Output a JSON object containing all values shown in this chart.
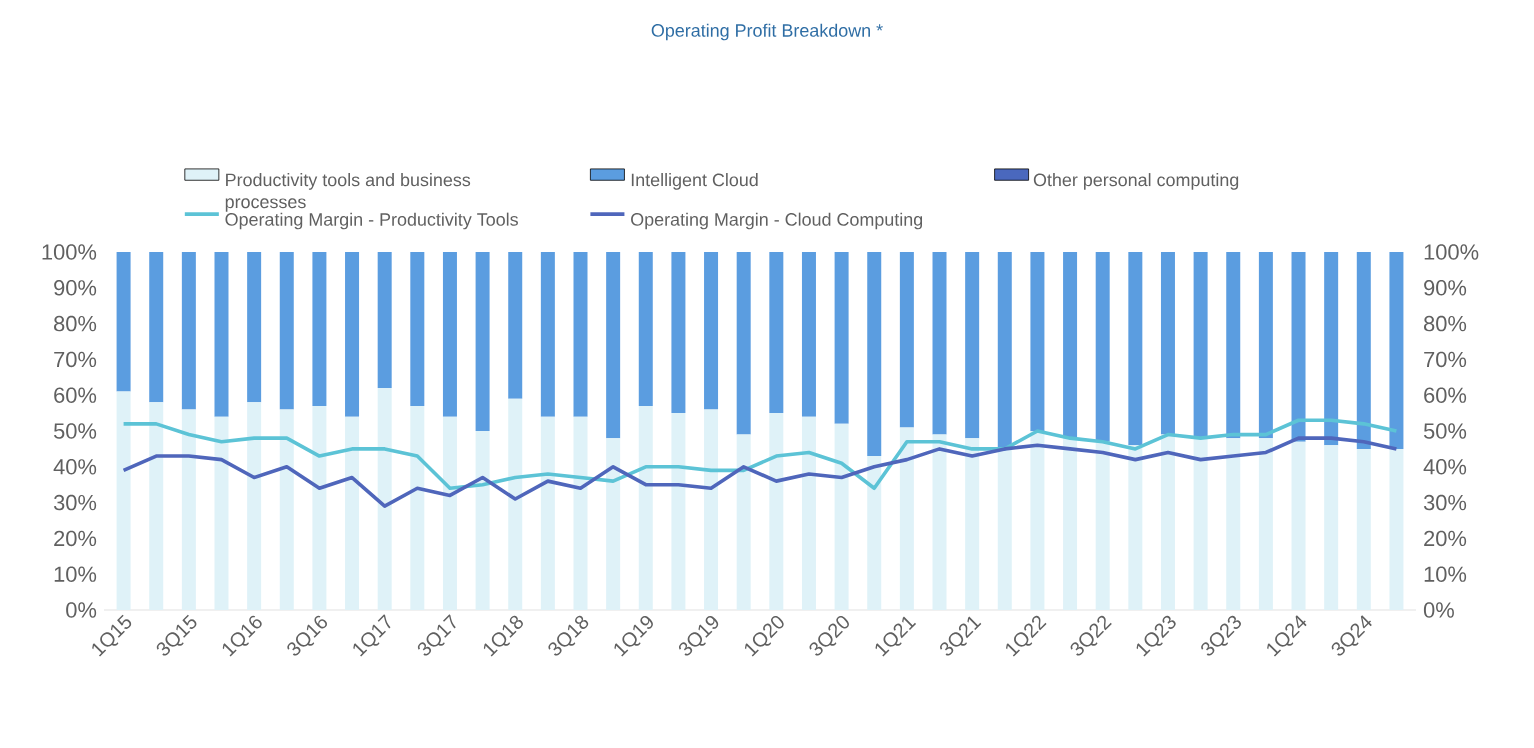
{
  "chart_data": {
    "type": "bar",
    "title": "Operating Profit Breakdown *",
    "stacked": true,
    "legend": "top",
    "marker": "none",
    "line_style": "solid",
    "categories": [
      "1Q15",
      null,
      "3Q15",
      null,
      "1Q16",
      null,
      "3Q16",
      null,
      "1Q17",
      null,
      "3Q17",
      null,
      "1Q18",
      null,
      "3Q18",
      null,
      "1Q19",
      null,
      "3Q19",
      null,
      "1Q20",
      null,
      "3Q20",
      null,
      "1Q21",
      null,
      "3Q21",
      null,
      "1Q22",
      null,
      "3Q22",
      null,
      "1Q23",
      null,
      "3Q23",
      null,
      "1Q24",
      null,
      "3Q24",
      null
    ],
    "series": [
      {
        "name": "Productivity tools and business processes",
        "color": "#dff2f8",
        "values": [
          61,
          58,
          56,
          54,
          58,
          56,
          57,
          54,
          62,
          57,
          54,
          50,
          59,
          54,
          54,
          48,
          57,
          55,
          56,
          49,
          55,
          54,
          52,
          43,
          51,
          49,
          48,
          45,
          50,
          48,
          47,
          46,
          49,
          48,
          48,
          48,
          47,
          46,
          45,
          45
        ]
      },
      {
        "name": "Intelligent Cloud",
        "color": "#5b9de0",
        "values": [
          39,
          42,
          44,
          46,
          42,
          44,
          43,
          46,
          38,
          43,
          46,
          50,
          41,
          46,
          46,
          52,
          43,
          45,
          44,
          51,
          45,
          46,
          48,
          57,
          49,
          51,
          52,
          55,
          50,
          52,
          53,
          54,
          51,
          52,
          52,
          52,
          53,
          54,
          55,
          55
        ]
      },
      {
        "name": "Other personal computing",
        "color": "#4a68be",
        "values": [
          null,
          null,
          null,
          null,
          null,
          null,
          null,
          null,
          null,
          null,
          null,
          null,
          null,
          null,
          null,
          null,
          null,
          null,
          null,
          null,
          null,
          null,
          null,
          null,
          null,
          null,
          null,
          null,
          null,
          null,
          null,
          null,
          null,
          null,
          null,
          null,
          null,
          null,
          null,
          null
        ]
      },
      {
        "name": "Operating Margin - Productivity Tools",
        "type": "line",
        "color": "#5cc3d6",
        "values": [
          52,
          52,
          49,
          47,
          48,
          48,
          43,
          45,
          45,
          43,
          34,
          35,
          37,
          38,
          37,
          36,
          40,
          40,
          39,
          39,
          43,
          44,
          41,
          34,
          47,
          47,
          45,
          45,
          50,
          48,
          47,
          45,
          49,
          48,
          49,
          49,
          53,
          53,
          52,
          50
        ]
      },
      {
        "name": "Operating Margin - Cloud Computing",
        "type": "line",
        "color": "#4f66bb",
        "values": [
          39,
          43,
          43,
          42,
          37,
          40,
          34,
          37,
          29,
          34,
          32,
          37,
          31,
          36,
          34,
          40,
          35,
          35,
          34,
          40,
          36,
          38,
          37,
          40,
          42,
          45,
          43,
          45,
          46,
          45,
          44,
          42,
          44,
          42,
          43,
          44,
          48,
          48,
          47,
          45
        ]
      }
    ],
    "ylim": [
      0,
      100
    ],
    "yticks": [
      {
        "value": 0,
        "label": "0%"
      },
      {
        "value": 10,
        "label": "10%"
      },
      {
        "value": 20,
        "label": "20%"
      },
      {
        "value": 30,
        "label": "30%"
      },
      {
        "value": 40,
        "label": "40%"
      },
      {
        "value": 50,
        "label": "50%"
      },
      {
        "value": 60,
        "label": "60%"
      },
      {
        "value": 70,
        "label": "70%"
      },
      {
        "value": 80,
        "label": "80%"
      },
      {
        "value": 90,
        "label": "90%"
      },
      {
        "value": 100,
        "label": "100%"
      }
    ],
    "y2lim": [
      0,
      100
    ],
    "y2ticks": [
      {
        "value": 0,
        "label": "0%"
      },
      {
        "value": 10,
        "label": "10%"
      },
      {
        "value": 20,
        "label": "20%"
      },
      {
        "value": 30,
        "label": "30%"
      },
      {
        "value": 40,
        "label": "40%"
      },
      {
        "value": 50,
        "label": "50%"
      },
      {
        "value": 60,
        "label": "60%"
      },
      {
        "value": 70,
        "label": "70%"
      },
      {
        "value": 80,
        "label": "80%"
      },
      {
        "value": 90,
        "label": "90%"
      },
      {
        "value": 100,
        "label": "100%"
      }
    ]
  }
}
